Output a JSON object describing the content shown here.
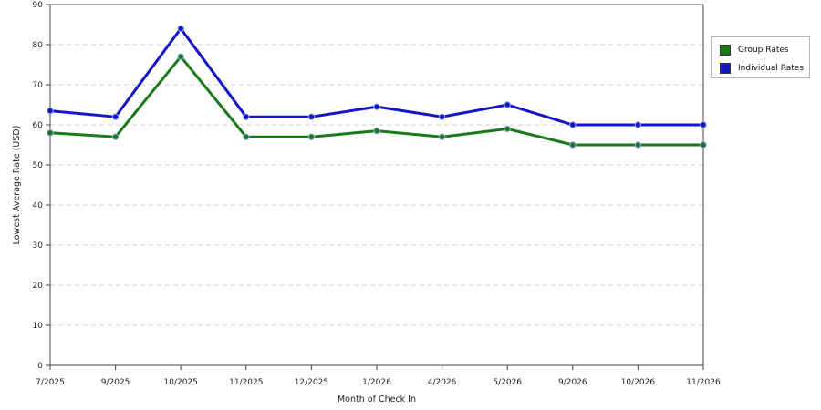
{
  "chart_data": {
    "type": "line",
    "xlabel": "Month of Check In",
    "ylabel": "Lowest Average Rate (USD)",
    "categories": [
      "7/2025",
      "9/2025",
      "10/2025",
      "11/2025",
      "12/2025",
      "1/2026",
      "4/2026",
      "5/2026",
      "9/2026",
      "10/2026",
      "11/2026"
    ],
    "ylim": [
      0,
      90
    ],
    "yticks": [
      "0",
      "10",
      "20",
      "30",
      "40",
      "50",
      "60",
      "70",
      "80",
      "90"
    ],
    "grid": true,
    "legend_position": "right",
    "series": [
      {
        "name": "Group Rates",
        "color": "#1a7a1a",
        "values": [
          58,
          57,
          77,
          57,
          57,
          58.5,
          57,
          59,
          55,
          55,
          55
        ]
      },
      {
        "name": "Individual Rates",
        "color": "#1414c8",
        "values": [
          63.5,
          62,
          84,
          62,
          62,
          64.5,
          62,
          65,
          60,
          60,
          60
        ]
      }
    ]
  },
  "legend": {
    "items": [
      {
        "label": "Group Rates",
        "color": "#1a7a1a"
      },
      {
        "label": "Individual Rates",
        "color": "#1414c8"
      }
    ]
  }
}
